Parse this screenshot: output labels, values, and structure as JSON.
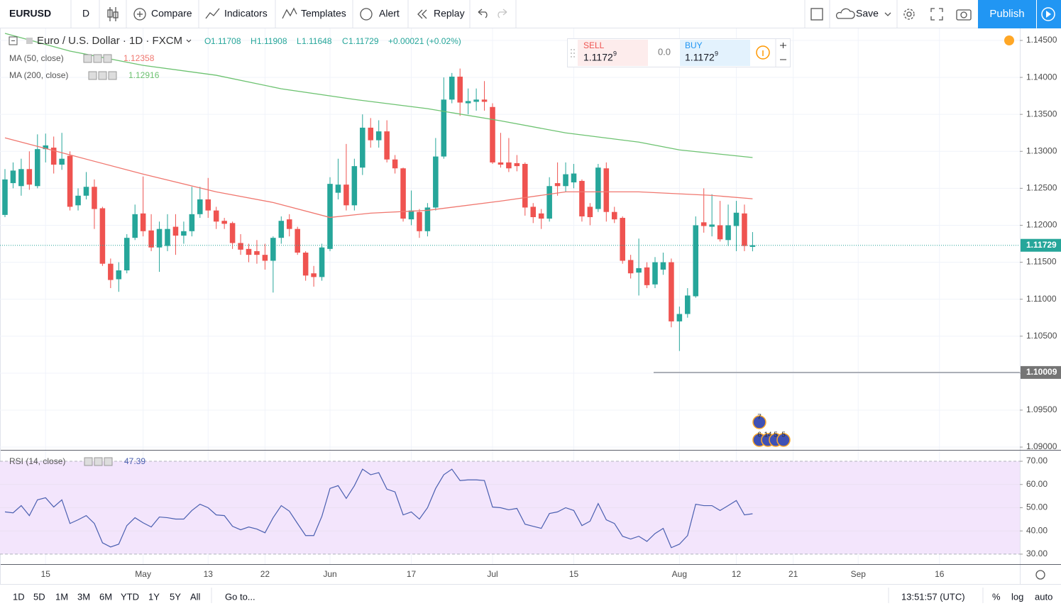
{
  "toolbar": {
    "symbol": "EURUSD",
    "interval": "D",
    "buttons": [
      "Compare",
      "Indicators",
      "Templates",
      "Alert",
      "Replay"
    ],
    "save": "Save",
    "publish": "Publish"
  },
  "legend": {
    "title": "Euro / U.S. Dollar · 1D · FXCM",
    "o": "O",
    "h": "H",
    "l": "L",
    "c": "C",
    "change": "+0.00021 (+0.02%)"
  },
  "trade": {
    "sell": "SELL",
    "sell_price": "1.1172",
    "sell_pip": "9",
    "spread": "0.0",
    "buy": "BUY",
    "buy_price": "1.1172",
    "buy_pip": "9"
  },
  "chart_data": [
    {
      "type": "candlestick",
      "up_color": "#26a69a",
      "down_color": "#ef5350",
      "grid": true,
      "open": [
        1.1214,
        1.1257,
        1.1253,
        1.1276,
        1.1253,
        1.1303,
        1.1305,
        1.1282,
        1.1294,
        1.1227,
        1.124,
        1.1252,
        1.1223,
        1.1148,
        1.1127,
        1.1139,
        1.1183,
        1.1216,
        1.1193,
        1.117,
        1.1172,
        1.1198,
        1.1186,
        1.1192,
        1.1215,
        1.1235,
        1.122,
        1.1206,
        1.1203,
        1.1176,
        1.1168,
        1.1165,
        1.116,
        1.1152,
        1.1183,
        1.1208,
        1.1195,
        1.1163,
        1.1135,
        1.113,
        1.1168,
        1.1244,
        1.1255,
        1.1227,
        1.1278,
        1.1332,
        1.1315,
        1.1327,
        1.1289,
        1.1277,
        1.1208,
        1.1218,
        1.1192,
        1.1224,
        1.1293,
        1.137,
        1.1401,
        1.1365,
        1.1367,
        1.137,
        1.136,
        1.1285,
        1.1285,
        1.1284,
        1.1283,
        1.1225,
        1.1216,
        1.1209,
        1.1257,
        1.1253,
        1.1258,
        1.126,
        1.1225,
        1.1222,
        1.1277,
        1.1218,
        1.121,
        1.1153,
        1.1136,
        1.1143,
        1.112,
        1.114,
        1.115,
        1.107,
        1.108,
        1.1104,
        1.1204,
        1.1198,
        1.12,
        1.118,
        1.1199,
        1.1216,
        1.11708
      ],
      "high": [
        1.1276,
        1.1285,
        1.129,
        1.13,
        1.1323,
        1.1324,
        1.132,
        1.1325,
        1.13,
        1.125,
        1.1272,
        1.1262,
        1.1225,
        1.1155,
        1.115,
        1.1188,
        1.1228,
        1.1266,
        1.1215,
        1.1205,
        1.1215,
        1.1215,
        1.1205,
        1.1252,
        1.1252,
        1.1264,
        1.1225,
        1.121,
        1.1205,
        1.1188,
        1.1175,
        1.118,
        1.1175,
        1.1185,
        1.1212,
        1.1215,
        1.1198,
        1.1165,
        1.1145,
        1.1175,
        1.1265,
        1.129,
        1.131,
        1.129,
        1.135,
        1.1345,
        1.1342,
        1.1342,
        1.1295,
        1.1278,
        1.1247,
        1.1222,
        1.123,
        1.1318,
        1.14,
        1.1406,
        1.1412,
        1.1385,
        1.1385,
        1.1395,
        1.1365,
        1.1325,
        1.1318,
        1.1295,
        1.1285,
        1.123,
        1.1222,
        1.1265,
        1.1285,
        1.1285,
        1.1283,
        1.1262,
        1.123,
        1.1283,
        1.1285,
        1.1225,
        1.1212,
        1.116,
        1.1182,
        1.115,
        1.1157,
        1.1163,
        1.1155,
        1.109,
        1.1115,
        1.1212,
        1.125,
        1.1242,
        1.1233,
        1.1228,
        1.1233,
        1.1228,
        1.11908
      ],
      "low": [
        1.1211,
        1.125,
        1.124,
        1.1248,
        1.125,
        1.1285,
        1.127,
        1.1275,
        1.122,
        1.122,
        1.1235,
        1.1195,
        1.1145,
        1.1115,
        1.111,
        1.1135,
        1.118,
        1.1185,
        1.1165,
        1.1137,
        1.1165,
        1.116,
        1.1175,
        1.1185,
        1.121,
        1.121,
        1.1195,
        1.1195,
        1.1168,
        1.116,
        1.115,
        1.1148,
        1.114,
        1.1109,
        1.1175,
        1.1185,
        1.116,
        1.1125,
        1.1117,
        1.1125,
        1.1165,
        1.1235,
        1.122,
        1.122,
        1.1268,
        1.1305,
        1.1305,
        1.1285,
        1.127,
        1.1205,
        1.12,
        1.1183,
        1.1185,
        1.122,
        1.129,
        1.1365,
        1.1348,
        1.135,
        1.1355,
        1.1355,
        1.1283,
        1.1278,
        1.1272,
        1.1273,
        1.1213,
        1.1203,
        1.1195,
        1.1205,
        1.124,
        1.1245,
        1.125,
        1.1205,
        1.12,
        1.1218,
        1.1205,
        1.1203,
        1.1148,
        1.1128,
        1.1105,
        1.1115,
        1.1115,
        1.1133,
        1.1062,
        1.103,
        1.1075,
        1.1102,
        1.119,
        1.1185,
        1.1178,
        1.1172,
        1.1165,
        1.1165,
        1.11648
      ],
      "close": [
        1.1262,
        1.1274,
        1.1276,
        1.1255,
        1.1303,
        1.1308,
        1.1282,
        1.129,
        1.1225,
        1.124,
        1.1252,
        1.1222,
        1.1148,
        1.1126,
        1.1139,
        1.1183,
        1.1215,
        1.1192,
        1.117,
        1.1195,
        1.1195,
        1.1186,
        1.1192,
        1.1215,
        1.1235,
        1.122,
        1.1205,
        1.1202,
        1.1176,
        1.1167,
        1.116,
        1.116,
        1.1152,
        1.1183,
        1.1206,
        1.1195,
        1.1163,
        1.1132,
        1.113,
        1.117,
        1.1256,
        1.1255,
        1.1227,
        1.128,
        1.1332,
        1.1315,
        1.1327,
        1.1289,
        1.1277,
        1.1209,
        1.122,
        1.1192,
        1.1224,
        1.1293,
        1.137,
        1.1401,
        1.1366,
        1.1368,
        1.137,
        1.1367,
        1.1285,
        1.1282,
        1.1277,
        1.128,
        1.1224,
        1.1211,
        1.1209,
        1.1253,
        1.1253,
        1.1269,
        1.127,
        1.1212,
        1.1211,
        1.1278,
        1.1218,
        1.1208,
        1.1152,
        1.1135,
        1.1142,
        1.1119,
        1.115,
        1.115,
        1.107,
        1.108,
        1.1105,
        1.12,
        1.1199,
        1.1201,
        1.1181,
        1.12,
        1.1217,
        1.1172,
        1.11729
      ],
      "series": [
        {
          "name": "MA (50, close)",
          "color": "#f0776f",
          "x": [
            0,
            8,
            17,
            26,
            33,
            40,
            45,
            52,
            61,
            69,
            78,
            87,
            92
          ],
          "values": [
            1.13183,
            1.12952,
            1.12692,
            1.12452,
            1.12308,
            1.12106,
            1.12164,
            1.12202,
            1.12327,
            1.12452,
            1.12452,
            1.12404,
            1.12358
          ]
        },
        {
          "name": "MA (200, close)",
          "color": "#6cc270",
          "x": [
            0,
            8,
            17,
            26,
            34,
            43,
            52,
            61,
            69,
            78,
            83,
            92
          ],
          "values": [
            1.14596,
            1.14356,
            1.14163,
            1.14029,
            1.13846,
            1.13702,
            1.13577,
            1.13413,
            1.1325,
            1.13125,
            1.13019,
            1.12916
          ]
        }
      ],
      "level": 1.10009,
      "events": [
        "7",
        "6",
        "14",
        "5",
        "5"
      ],
      "xlim": [
        -0.611,
        124.89
      ],
      "ylim": [
        1.08962,
        1.14663
      ],
      "xticks": [
        {
          "value": 5,
          "label": "15"
        },
        {
          "value": 17,
          "label": "May"
        },
        {
          "value": 25,
          "label": "13"
        },
        {
          "value": 32,
          "label": "22"
        },
        {
          "value": 40,
          "label": "Jun"
        },
        {
          "value": 50,
          "label": "17"
        },
        {
          "value": 60,
          "label": "Jul"
        },
        {
          "value": 70,
          "label": "15"
        },
        {
          "value": 83,
          "label": "Aug"
        },
        {
          "value": 90,
          "label": "12"
        },
        {
          "value": 97,
          "label": "21"
        },
        {
          "value": 105,
          "label": "Sep"
        },
        {
          "value": 115,
          "label": "16"
        }
      ],
      "yticks": [
        {
          "value": 1.145,
          "label": "1.14500"
        },
        {
          "value": 1.14,
          "label": "1.14000"
        },
        {
          "value": 1.135,
          "label": "1.13500"
        },
        {
          "value": 1.13,
          "label": "1.13000"
        },
        {
          "value": 1.125,
          "label": "1.12500"
        },
        {
          "value": 1.12,
          "label": "1.12000"
        },
        {
          "value": 1.115,
          "label": "1.11500"
        },
        {
          "value": 1.11,
          "label": "1.11000"
        },
        {
          "value": 1.105,
          "label": "1.10500"
        },
        {
          "value": 1.1,
          "label": "1.10000"
        },
        {
          "value": 1.095,
          "label": "1.09500"
        },
        {
          "value": 1.09,
          "label": "1.09000"
        }
      ]
    },
    {
      "type": "line",
      "band_color": "#f3e5fc",
      "grid": true,
      "series": [
        {
          "name": "RSI (14, close)",
          "color": "#4a5fb0",
          "values": [
            48.2,
            47.8,
            50.9,
            46.6,
            53.4,
            54.3,
            50.3,
            53.4,
            43.2,
            44.8,
            46.6,
            43.2,
            34.9,
            33.1,
            34.3,
            42.3,
            45.7,
            43.5,
            41.7,
            46.0,
            45.7,
            45.1,
            45.1,
            48.8,
            51.5,
            50.0,
            46.9,
            46.6,
            42.0,
            40.5,
            41.7,
            40.8,
            39.2,
            45.7,
            50.9,
            48.5,
            43.2,
            38.0,
            38.0,
            46.3,
            58.3,
            59.5,
            54.0,
            59.5,
            66.6,
            64.2,
            65.1,
            58.0,
            56.8,
            46.9,
            48.2,
            45.1,
            50.0,
            58.3,
            64.2,
            66.6,
            61.7,
            62.0,
            62.0,
            61.7,
            50.3,
            50.0,
            49.1,
            49.7,
            42.9,
            42.0,
            41.1,
            47.5,
            48.2,
            50.0,
            48.8,
            42.3,
            44.2,
            51.8,
            44.8,
            43.2,
            37.7,
            36.5,
            37.7,
            35.5,
            38.9,
            41.1,
            32.8,
            34.3,
            38.0,
            51.5,
            50.9,
            50.9,
            48.8,
            50.9,
            53.1,
            46.9,
            47.39
          ]
        }
      ],
      "ylim": [
        25.7,
        74.6
      ],
      "yticks": [
        {
          "value": 70,
          "label": "70.00"
        },
        {
          "value": 60,
          "label": "60.00"
        },
        {
          "value": 50,
          "label": "50.00"
        },
        {
          "value": 40,
          "label": "40.00"
        },
        {
          "value": 30,
          "label": "30.00"
        }
      ]
    }
  ],
  "bottom": {
    "ranges": [
      "1D",
      "5D",
      "1M",
      "3M",
      "6M",
      "YTD",
      "1Y",
      "5Y",
      "All"
    ],
    "goto": "Go to...",
    "time": "13:51:57 (UTC)",
    "percent": "%",
    "log": "log",
    "auto": "auto"
  }
}
